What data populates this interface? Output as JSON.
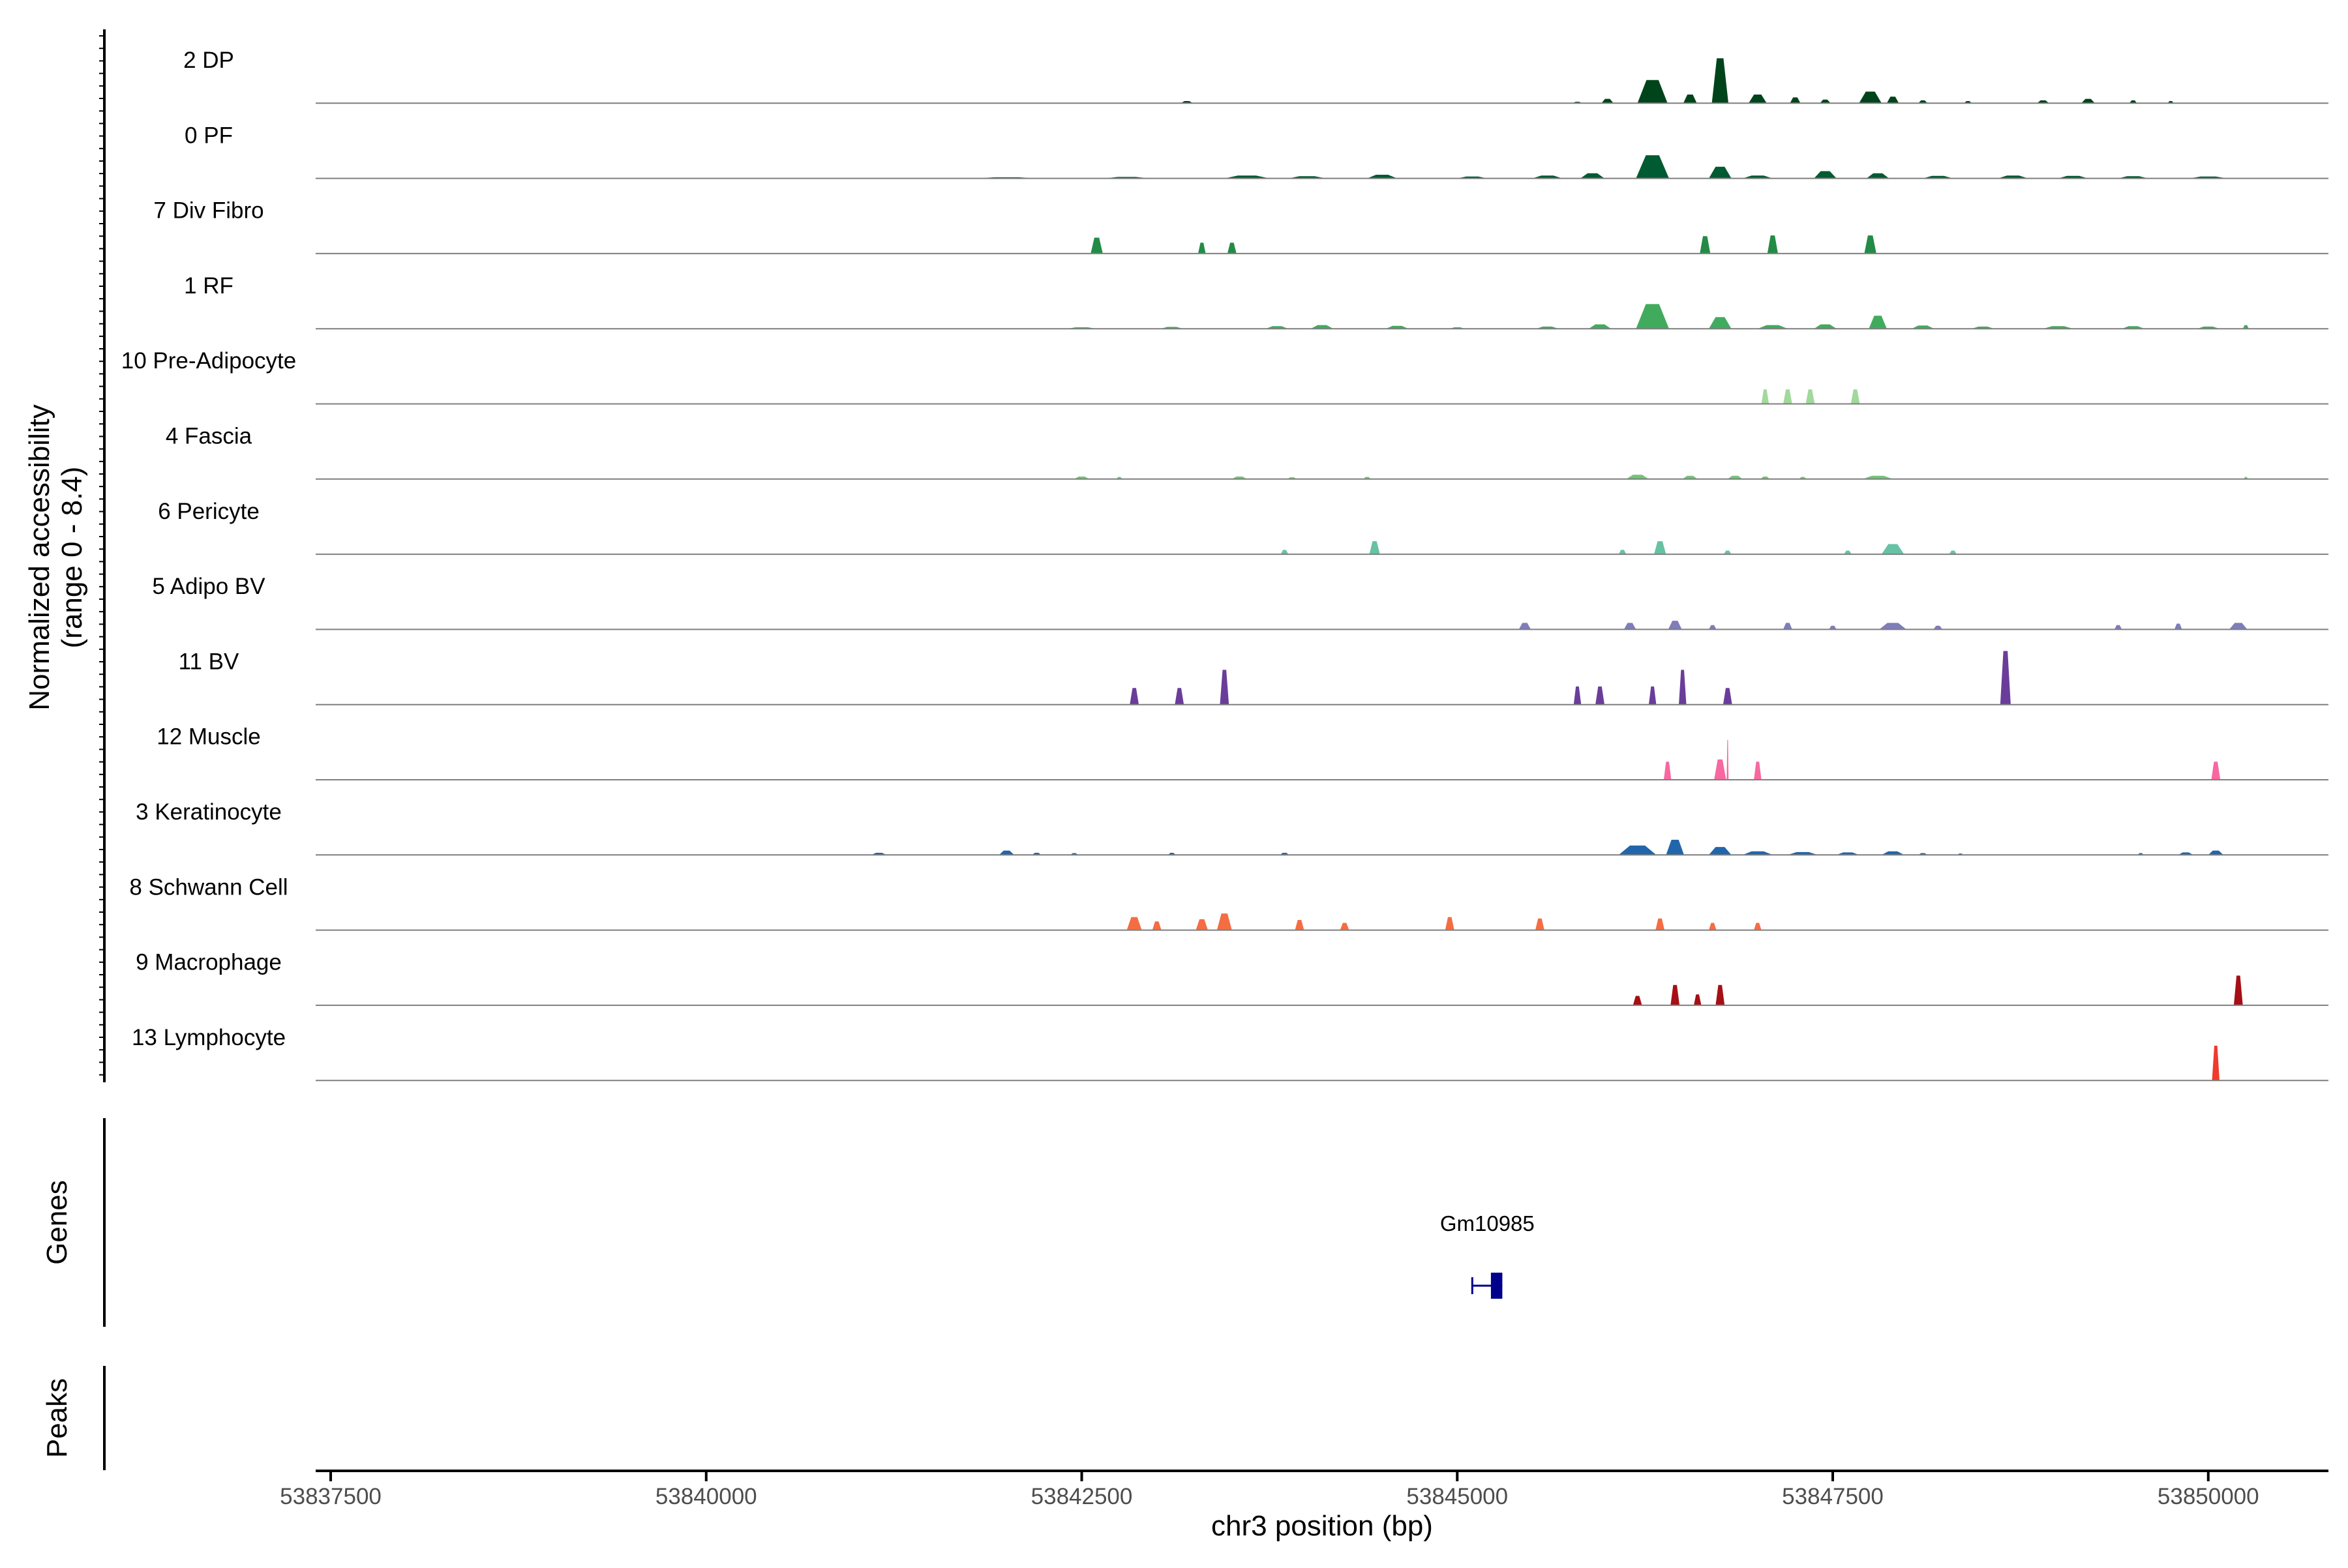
{
  "chart_data": {
    "type": "area",
    "ylabel_line1": "Normalized accessibility",
    "ylabel_line2": "(range 0 - 8.4)",
    "xlabel": "chr3 position (bp)",
    "xlim": [
      53837400,
      53850800
    ],
    "x_ticks": [
      53837500,
      53840000,
      53842500,
      53845000,
      53847500,
      53850000
    ],
    "x_tick_labels": [
      "53837500",
      "53840000",
      "53842500",
      "53845000",
      "53847500",
      "53850000"
    ],
    "y_range": [
      0,
      8.4
    ],
    "series": [
      {
        "name": "2 DP",
        "color": "#00441b",
        "peaks": [
          [
            53843200,
            80,
            0.3
          ],
          [
            53845800,
            60,
            0.2
          ],
          [
            53846000,
            80,
            0.6
          ],
          [
            53846300,
            200,
            3.2
          ],
          [
            53846550,
            90,
            1.2
          ],
          [
            53846750,
            110,
            6.2
          ],
          [
            53847000,
            120,
            1.2
          ],
          [
            53847250,
            70,
            0.8
          ],
          [
            53847450,
            70,
            0.5
          ],
          [
            53847750,
            150,
            1.6
          ],
          [
            53847900,
            80,
            0.9
          ],
          [
            53848100,
            60,
            0.4
          ],
          [
            53848400,
            50,
            0.3
          ],
          [
            53848900,
            80,
            0.4
          ],
          [
            53849200,
            90,
            0.6
          ],
          [
            53849500,
            50,
            0.4
          ],
          [
            53849750,
            40,
            0.3
          ]
        ]
      },
      {
        "name": "0 PF",
        "color": "#005a32",
        "peaks": [
          [
            53842000,
            400,
            0.15
          ],
          [
            53842800,
            300,
            0.2
          ],
          [
            53843600,
            300,
            0.4
          ],
          [
            53844000,
            250,
            0.3
          ],
          [
            53844500,
            200,
            0.5
          ],
          [
            53845100,
            200,
            0.25
          ],
          [
            53845600,
            200,
            0.4
          ],
          [
            53845900,
            160,
            0.7
          ],
          [
            53846300,
            220,
            3.2
          ],
          [
            53846750,
            150,
            1.6
          ],
          [
            53847000,
            200,
            0.4
          ],
          [
            53847450,
            150,
            1.0
          ],
          [
            53847800,
            150,
            0.7
          ],
          [
            53848200,
            200,
            0.35
          ],
          [
            53848700,
            200,
            0.4
          ],
          [
            53849100,
            200,
            0.35
          ],
          [
            53849500,
            200,
            0.3
          ],
          [
            53850000,
            250,
            0.25
          ]
        ]
      },
      {
        "name": "7 Div Fibro",
        "color": "#238b45",
        "peaks": [
          [
            53842600,
            80,
            2.2
          ],
          [
            53843300,
            50,
            1.5
          ],
          [
            53843500,
            60,
            1.5
          ],
          [
            53846650,
            70,
            2.4
          ],
          [
            53847100,
            70,
            2.5
          ],
          [
            53847750,
            80,
            2.5
          ]
        ]
      },
      {
        "name": "1 RF",
        "color": "#41ab5d",
        "peaks": [
          [
            53842500,
            200,
            0.2
          ],
          [
            53843100,
            150,
            0.25
          ],
          [
            53843800,
            150,
            0.35
          ],
          [
            53844100,
            150,
            0.5
          ],
          [
            53844600,
            150,
            0.4
          ],
          [
            53845000,
            100,
            0.2
          ],
          [
            53845600,
            150,
            0.3
          ],
          [
            53845950,
            150,
            0.6
          ],
          [
            53846300,
            220,
            3.4
          ],
          [
            53846750,
            150,
            1.6
          ],
          [
            53847100,
            200,
            0.5
          ],
          [
            53847450,
            150,
            0.6
          ],
          [
            53847800,
            120,
            1.8
          ],
          [
            53848100,
            150,
            0.45
          ],
          [
            53848500,
            150,
            0.3
          ],
          [
            53849000,
            200,
            0.35
          ],
          [
            53849500,
            150,
            0.35
          ],
          [
            53850000,
            150,
            0.3
          ],
          [
            53850250,
            40,
            0.5
          ]
        ]
      },
      {
        "name": "10 Pre-Adipocyte",
        "color": "#a1d99b",
        "peaks": [
          [
            53847050,
            50,
            2.0
          ],
          [
            53847200,
            60,
            2.0
          ],
          [
            53847350,
            60,
            2.0
          ],
          [
            53847650,
            60,
            2.0
          ]
        ]
      },
      {
        "name": "4 Fascia",
        "color": "#74c476",
        "peaks": [
          [
            53842500,
            100,
            0.35
          ],
          [
            53842750,
            40,
            0.3
          ],
          [
            53843550,
            100,
            0.35
          ],
          [
            53843900,
            60,
            0.25
          ],
          [
            53844400,
            50,
            0.3
          ],
          [
            53846200,
            150,
            0.6
          ],
          [
            53846550,
            100,
            0.45
          ],
          [
            53846850,
            100,
            0.45
          ],
          [
            53847050,
            60,
            0.35
          ],
          [
            53847300,
            50,
            0.3
          ],
          [
            53847800,
            200,
            0.45
          ],
          [
            53850250,
            30,
            0.3
          ]
        ]
      },
      {
        "name": "6 Pericyte",
        "color": "#66c2a4",
        "peaks": [
          [
            53843850,
            50,
            0.6
          ],
          [
            53844450,
            70,
            1.8
          ],
          [
            53846100,
            50,
            0.6
          ],
          [
            53846350,
            80,
            1.8
          ],
          [
            53846800,
            50,
            0.5
          ],
          [
            53847600,
            50,
            0.5
          ],
          [
            53847900,
            150,
            1.4
          ],
          [
            53848300,
            50,
            0.5
          ]
        ]
      },
      {
        "name": "5 Adipo BV",
        "color": "#807dba",
        "peaks": [
          [
            53845450,
            80,
            0.9
          ],
          [
            53846150,
            80,
            0.9
          ],
          [
            53846450,
            90,
            1.2
          ],
          [
            53846700,
            50,
            0.6
          ],
          [
            53847200,
            60,
            0.9
          ],
          [
            53847500,
            50,
            0.5
          ],
          [
            53847900,
            180,
            0.9
          ],
          [
            53848200,
            60,
            0.5
          ],
          [
            53849400,
            50,
            0.6
          ],
          [
            53849800,
            50,
            0.8
          ],
          [
            53850200,
            120,
            0.9
          ]
        ]
      },
      {
        "name": "11 BV",
        "color": "#6a3d9a",
        "peaks": [
          [
            53842850,
            60,
            2.3
          ],
          [
            53843150,
            60,
            2.3
          ],
          [
            53843450,
            60,
            4.8
          ],
          [
            53845800,
            50,
            2.5
          ],
          [
            53845950,
            60,
            2.5
          ],
          [
            53846300,
            50,
            2.5
          ],
          [
            53846500,
            50,
            4.8
          ],
          [
            53846800,
            60,
            2.3
          ],
          [
            53848650,
            70,
            7.4
          ]
        ]
      },
      {
        "name": "12 Muscle",
        "color": "#f768a1",
        "peaks": [
          [
            53846400,
            50,
            2.5
          ],
          [
            53846750,
            80,
            2.8
          ],
          [
            53846800,
            12,
            5.5
          ],
          [
            53847000,
            50,
            2.5
          ],
          [
            53850050,
            60,
            2.5
          ]
        ]
      },
      {
        "name": "3 Keratinocyte",
        "color": "#2166ac",
        "peaks": [
          [
            53841150,
            100,
            0.3
          ],
          [
            53842000,
            100,
            0.6
          ],
          [
            53842200,
            60,
            0.3
          ],
          [
            53842450,
            50,
            0.25
          ],
          [
            53843100,
            50,
            0.3
          ],
          [
            53843850,
            60,
            0.3
          ],
          [
            53846200,
            250,
            1.3
          ],
          [
            53846450,
            120,
            2.1
          ],
          [
            53846750,
            150,
            1.1
          ],
          [
            53847000,
            200,
            0.5
          ],
          [
            53847300,
            200,
            0.4
          ],
          [
            53847600,
            150,
            0.35
          ],
          [
            53847900,
            150,
            0.5
          ],
          [
            53848100,
            60,
            0.25
          ],
          [
            53848350,
            40,
            0.2
          ],
          [
            53849550,
            40,
            0.25
          ],
          [
            53849850,
            100,
            0.35
          ],
          [
            53850050,
            100,
            0.6
          ]
        ]
      },
      {
        "name": "8 Schwann Cell",
        "color": "#f46d43",
        "peaks": [
          [
            53842850,
            100,
            1.8
          ],
          [
            53843000,
            60,
            1.2
          ],
          [
            53843300,
            80,
            1.5
          ],
          [
            53843450,
            100,
            2.3
          ],
          [
            53843950,
            60,
            1.4
          ],
          [
            53844250,
            60,
            1.0
          ],
          [
            53844950,
            60,
            1.8
          ],
          [
            53845550,
            60,
            1.6
          ],
          [
            53846350,
            60,
            1.6
          ],
          [
            53846700,
            50,
            1.0
          ],
          [
            53847000,
            50,
            1.0
          ]
        ]
      },
      {
        "name": "9 Macrophage",
        "color": "#a50f15",
        "peaks": [
          [
            53846200,
            60,
            1.3
          ],
          [
            53846450,
            60,
            2.8
          ],
          [
            53846600,
            50,
            1.5
          ],
          [
            53846750,
            60,
            2.8
          ],
          [
            53850200,
            60,
            4.1
          ]
        ]
      },
      {
        "name": "13 Lymphocyte",
        "color": "#ef3b2c",
        "peaks": [
          [
            53850050,
            50,
            4.8
          ]
        ]
      }
    ],
    "genes": [
      {
        "name": "Gm10985",
        "start": 53845100,
        "end": 53845300,
        "strand": "-",
        "color": "#00008b"
      }
    ],
    "panels": {
      "genes_title": "Genes",
      "peaks_title": "Peaks"
    }
  }
}
